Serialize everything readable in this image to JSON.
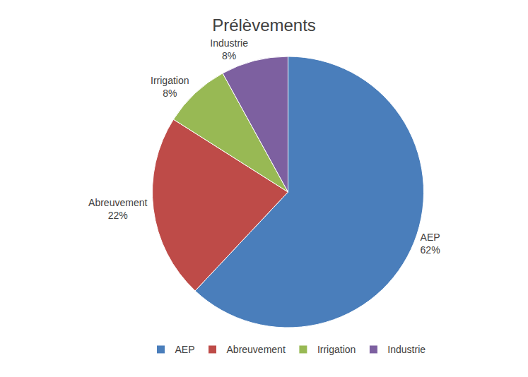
{
  "chart_data": {
    "type": "pie",
    "title": "Prélèvements",
    "categories": [
      "AEP",
      "Abreuvement",
      "Irrigation",
      "Industrie"
    ],
    "values": [
      62,
      22,
      8,
      8
    ],
    "value_labels": [
      "62%",
      "22%",
      "8%",
      "8%"
    ],
    "colors": [
      "#4a7ebb",
      "#be4b48",
      "#98b954",
      "#7d60a0"
    ],
    "data_labels": true,
    "legend": "bottom"
  }
}
